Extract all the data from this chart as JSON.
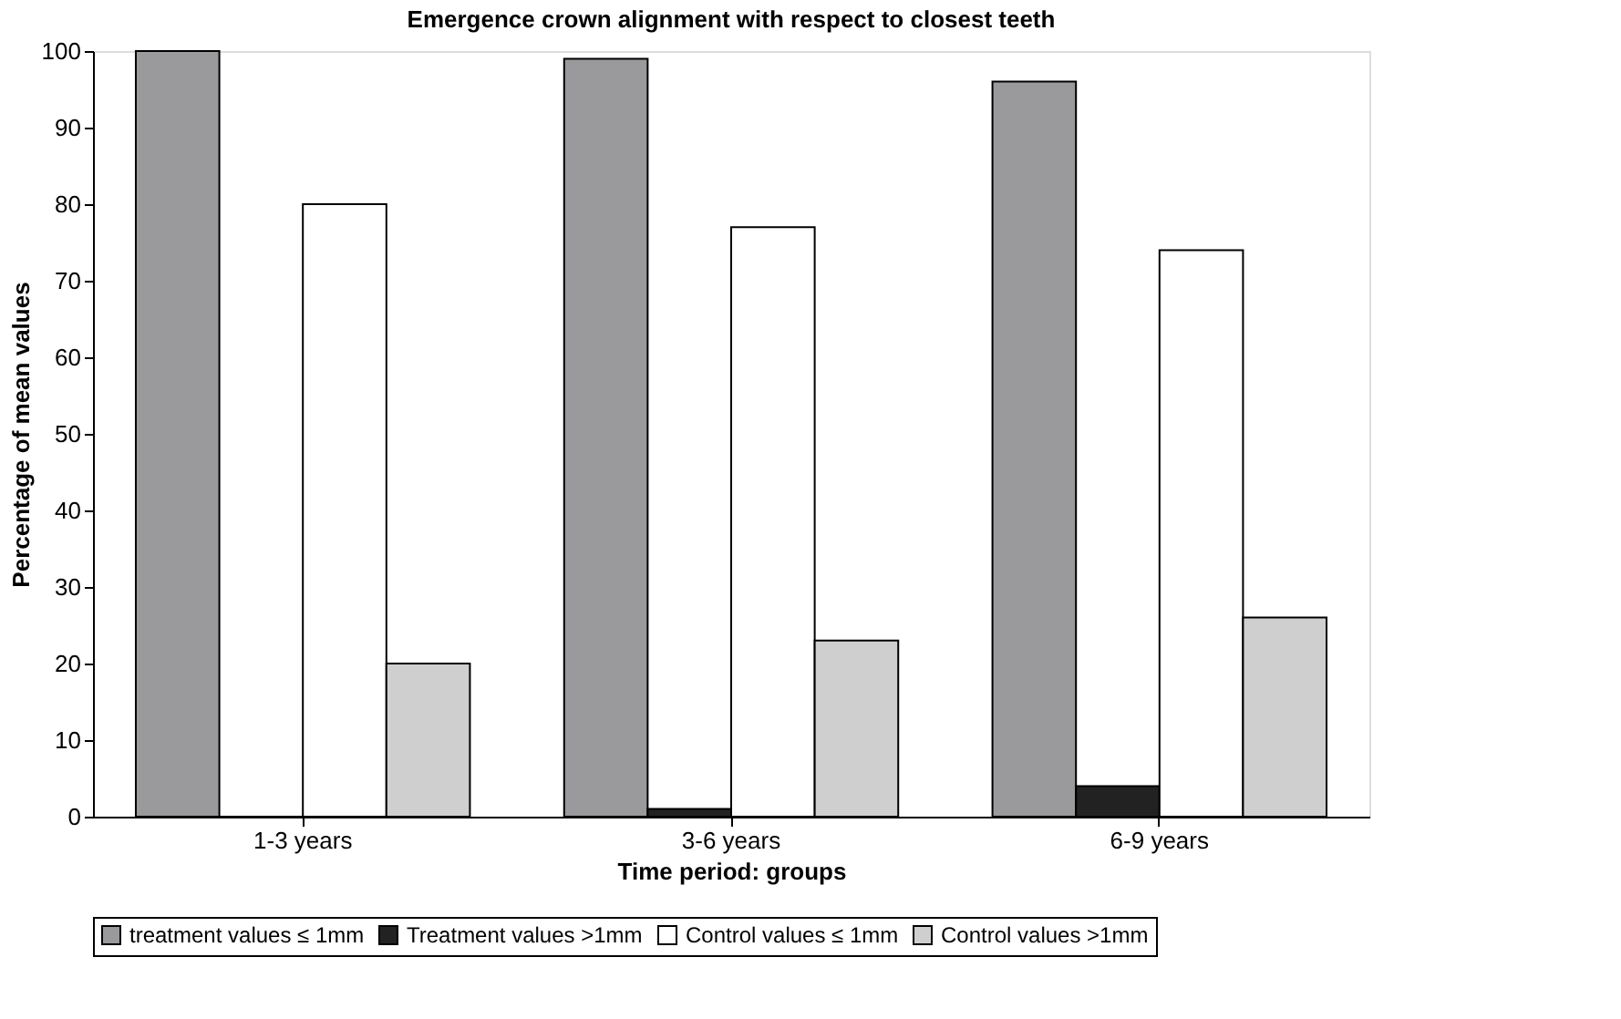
{
  "chart_data": {
    "type": "bar",
    "title": "Emergence crown alignment with respect to closest teeth",
    "xlabel": "Time period: groups",
    "ylabel": "Percentage of mean values",
    "categories": [
      "1-3 years",
      "3-6 years",
      "6-9 years"
    ],
    "series": [
      {
        "name": "treatment values ≤ 1mm",
        "color": "#9a9a9c",
        "values": [
          100,
          99,
          96
        ]
      },
      {
        "name": "Treatment values >1mm",
        "color": "#222222",
        "values": [
          0,
          1,
          4
        ]
      },
      {
        "name": "Control values ≤ 1mm",
        "color": "#ffffff",
        "values": [
          80,
          77,
          74
        ]
      },
      {
        "name": "Control values >1mm",
        "color": "#cfcfcf",
        "values": [
          20,
          23,
          26
        ]
      }
    ],
    "ylim": [
      0,
      100
    ],
    "yticks": [
      0,
      10,
      20,
      30,
      40,
      50,
      60,
      70,
      80,
      90,
      100
    ],
    "grid": false,
    "legend": "bottom"
  }
}
